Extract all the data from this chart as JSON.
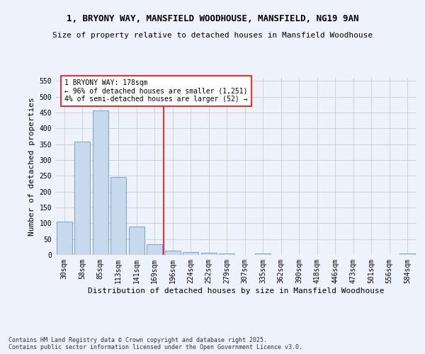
{
  "title": "1, BRYONY WAY, MANSFIELD WOODHOUSE, MANSFIELD, NG19 9AN",
  "subtitle": "Size of property relative to detached houses in Mansfield Woodhouse",
  "xlabel": "Distribution of detached houses by size in Mansfield Woodhouse",
  "ylabel": "Number of detached properties",
  "categories": [
    "30sqm",
    "58sqm",
    "85sqm",
    "113sqm",
    "141sqm",
    "169sqm",
    "196sqm",
    "224sqm",
    "252sqm",
    "279sqm",
    "307sqm",
    "335sqm",
    "362sqm",
    "390sqm",
    "418sqm",
    "446sqm",
    "473sqm",
    "501sqm",
    "556sqm",
    "584sqm"
  ],
  "values": [
    105,
    358,
    458,
    246,
    90,
    33,
    14,
    10,
    6,
    5,
    0,
    5,
    0,
    0,
    0,
    0,
    0,
    0,
    0,
    5
  ],
  "bar_color": "#c9d9ed",
  "bar_edge_color": "#6699cc",
  "vline_x": 5.5,
  "vline_color": "red",
  "annotation_title": "1 BRYONY WAY: 178sqm",
  "annotation_line1": "← 96% of detached houses are smaller (1,251)",
  "annotation_line2": "4% of semi-detached houses are larger (52) →",
  "annotation_box_color": "white",
  "annotation_box_edge": "red",
  "ylim": [
    0,
    560
  ],
  "yticks": [
    0,
    50,
    100,
    150,
    200,
    250,
    300,
    350,
    400,
    450,
    500,
    550
  ],
  "footer1": "Contains HM Land Registry data © Crown copyright and database right 2025.",
  "footer2": "Contains public sector information licensed under the Open Government Licence v3.0.",
  "bg_color": "#eef2fa",
  "plot_bg_color": "#eef2fa",
  "title_fontsize": 9,
  "subtitle_fontsize": 8,
  "axis_label_fontsize": 8,
  "tick_fontsize": 7,
  "footer_fontsize": 6,
  "ann_fontsize": 7
}
